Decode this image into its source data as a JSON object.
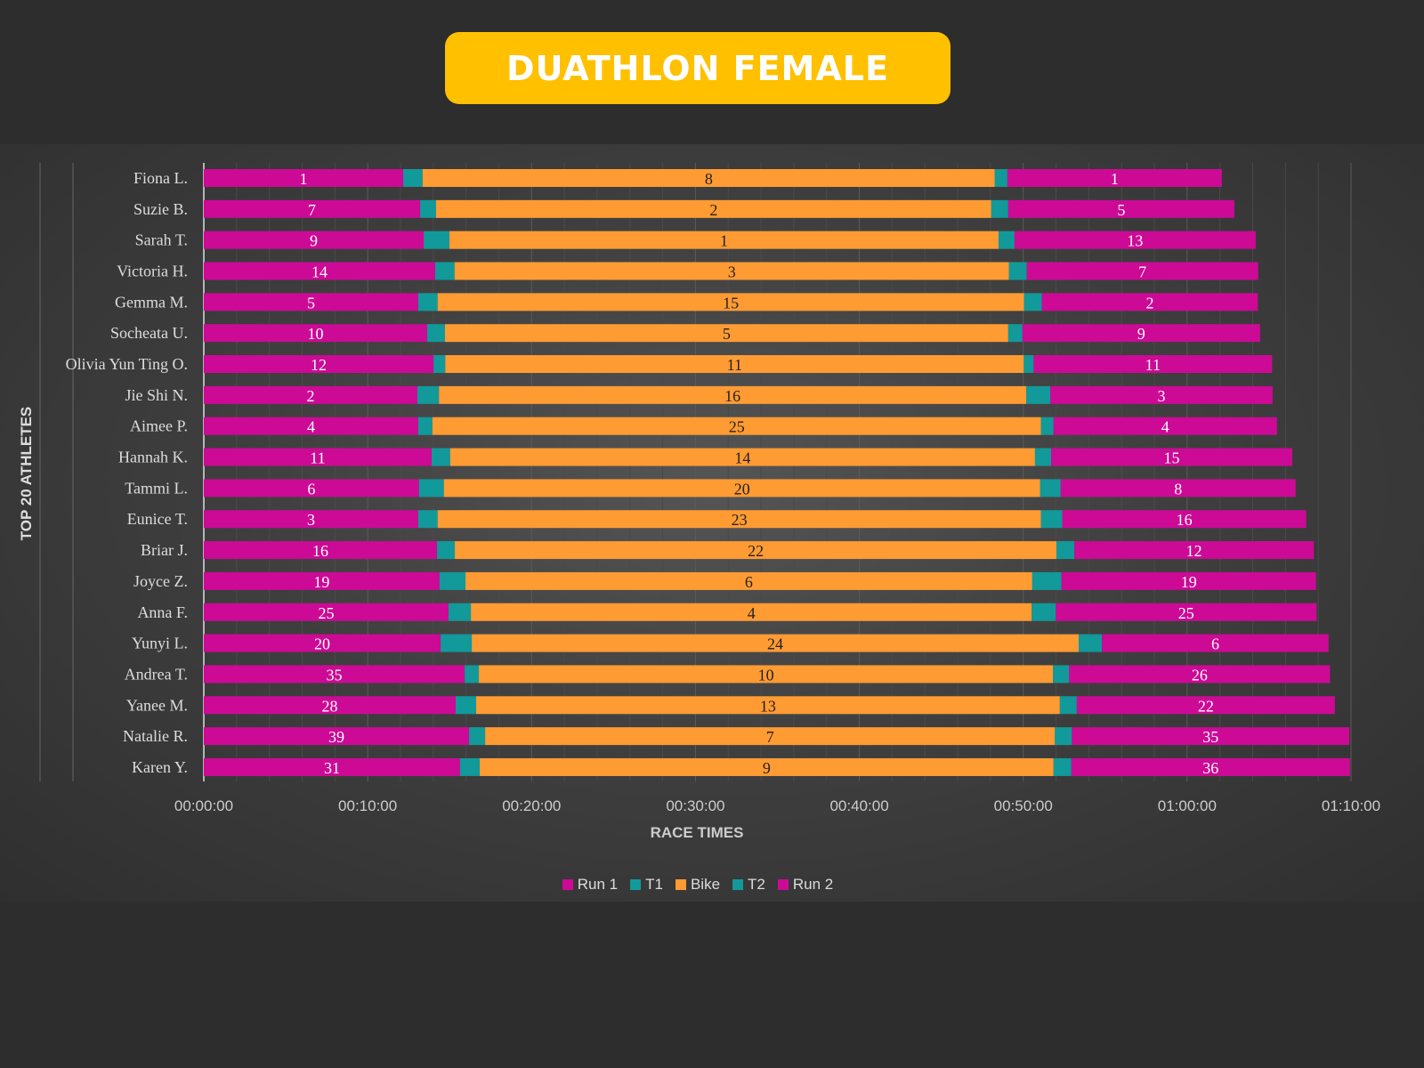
{
  "title": "DUATHLON FEMALE",
  "chart_data": {
    "type": "bar",
    "orientation": "horizontal",
    "stacked": true,
    "xlabel": "RACE TIMES",
    "ylabel": "TOP 20 ATHLETES",
    "xlim": [
      "00:00:00",
      "01:10:00"
    ],
    "xticks": [
      "00:00:00",
      "00:10:00",
      "00:20:00",
      "00:30:00",
      "00:40:00",
      "00:50:00",
      "01:00:00",
      "01:10:00"
    ],
    "grid": true,
    "legend": "bottom",
    "categories": [
      "Fiona L.",
      "Suzie B.",
      "Sarah T.",
      "Victoria H.",
      "Gemma M.",
      "Socheata U.",
      "Olivia Yun Ting O.",
      "Jie Shi N.",
      "Aimee P.",
      "Hannah K.",
      "Tammi L.",
      "Eunice T.",
      "Briar J.",
      "Joyce Z.",
      "Anna F.",
      "Yunyi L.",
      "Andrea T.",
      "Yanee M.",
      "Natalie R.",
      "Karen Y."
    ],
    "series": [
      {
        "name": "Run 1",
        "color": "#CC0A96",
        "values": [
          "00:12:10",
          "00:13:12",
          "00:13:25",
          "00:14:07",
          "00:13:05",
          "00:13:38",
          "00:14:01",
          "00:13:02",
          "00:13:05",
          "00:13:54",
          "00:13:08",
          "00:13:05",
          "00:14:14",
          "00:14:23",
          "00:14:56",
          "00:14:27",
          "00:15:55",
          "00:15:22",
          "00:16:11",
          "00:15:38"
        ],
        "labels": [
          "1",
          "7",
          "9",
          "14",
          "5",
          "10",
          "12",
          "2",
          "4",
          "11",
          "6",
          "3",
          "16",
          "19",
          "25",
          "20",
          "35",
          "28",
          "39",
          "31"
        ]
      },
      {
        "name": "T1",
        "color": "#12999A",
        "values": [
          "00:01:11",
          "00:00:58",
          "00:01:34",
          "00:01:11",
          "00:01:11",
          "00:01:05",
          "00:00:43",
          "00:01:19",
          "00:00:52",
          "00:01:08",
          "00:01:31",
          "00:01:11",
          "00:01:05",
          "00:01:35",
          "00:01:22",
          "00:01:54",
          "00:00:52",
          "00:01:15",
          "00:00:59",
          "00:01:12"
        ]
      },
      {
        "name": "Bike",
        "color": "#FF9B33",
        "values": [
          "00:34:55",
          "00:33:53",
          "00:33:31",
          "00:33:50",
          "00:35:47",
          "00:34:22",
          "00:35:18",
          "00:35:50",
          "00:37:08",
          "00:35:41",
          "00:36:23",
          "00:36:49",
          "00:36:43",
          "00:34:35",
          "00:34:13",
          "00:37:02",
          "00:35:02",
          "00:35:37",
          "00:34:46",
          "00:35:01"
        ],
        "labels": [
          "8",
          "2",
          "1",
          "3",
          "15",
          "5",
          "11",
          "16",
          "25",
          "14",
          "20",
          "23",
          "22",
          "6",
          "4",
          "24",
          "10",
          "13",
          "7",
          "9"
        ]
      },
      {
        "name": "T2",
        "color": "#12999A",
        "values": [
          "00:00:46",
          "00:01:02",
          "00:00:58",
          "00:01:05",
          "00:01:05",
          "00:00:52",
          "00:00:36",
          "00:01:28",
          "00:00:46",
          "00:00:59",
          "00:01:15",
          "00:01:18",
          "00:01:05",
          "00:01:47",
          "00:01:28",
          "00:01:25",
          "00:00:59",
          "00:01:02",
          "00:01:02",
          "00:01:05"
        ]
      },
      {
        "name": "Run 2",
        "color": "#CC0A96",
        "values": [
          "00:13:05",
          "00:13:48",
          "00:14:43",
          "00:14:07",
          "00:13:11",
          "00:14:30",
          "00:14:33",
          "00:13:34",
          "00:13:38",
          "00:14:43",
          "00:14:20",
          "00:14:53",
          "00:14:37",
          "00:15:32",
          "00:15:55",
          "00:13:50",
          "00:15:55",
          "00:15:45",
          "00:16:56",
          "00:17:00"
        ],
        "labels": [
          "1",
          "5",
          "13",
          "7",
          "2",
          "9",
          "11",
          "3",
          "4",
          "15",
          "8",
          "16",
          "12",
          "19",
          "25",
          "6",
          "26",
          "22",
          "35",
          "36"
        ]
      }
    ]
  }
}
